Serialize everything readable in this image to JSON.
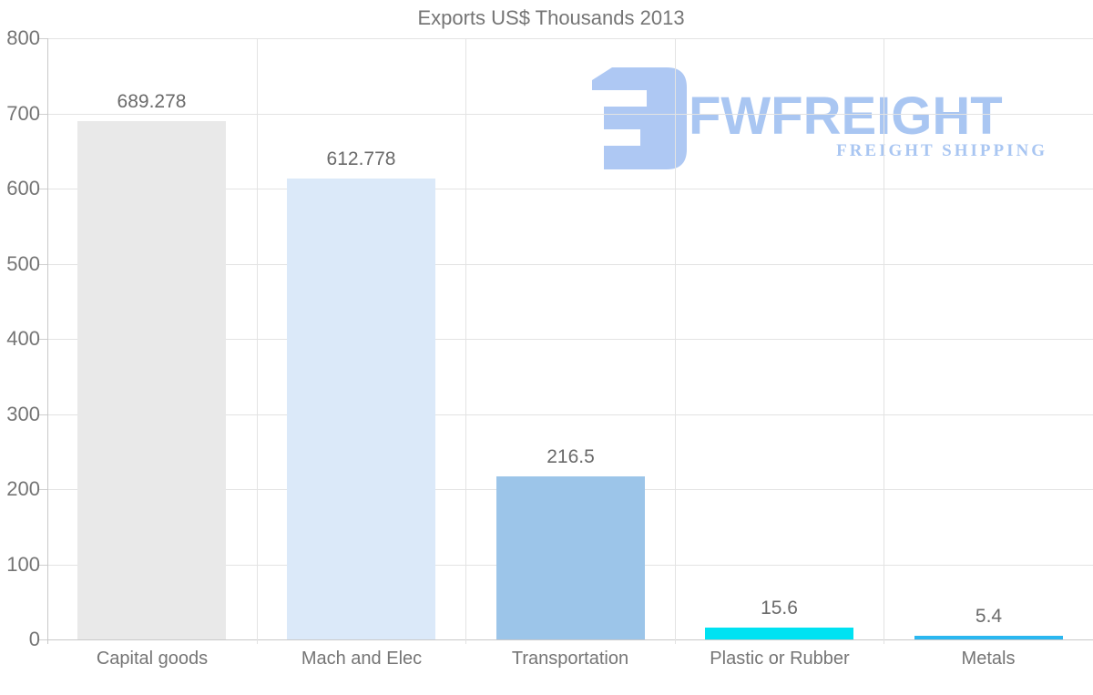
{
  "chart_data": {
    "type": "bar",
    "title": "Exports US$ Thousands 2013",
    "categories": [
      "Capital goods",
      "Mach and Elec",
      "Transportation",
      "Plastic or Rubber",
      "Metals"
    ],
    "values": [
      689.278,
      612.778,
      216.5,
      15.6,
      5.4
    ],
    "value_labels": [
      "689.278",
      "612.778",
      "216.5",
      "15.6",
      "5.4"
    ],
    "bar_colors": [
      "#e9e9e9",
      "#dbe9f9",
      "#9cc5e9",
      "#00e2f2",
      "#2ab7f0"
    ],
    "xlabel": "",
    "ylabel": "",
    "ylim": [
      0,
      800
    ],
    "yticks": [
      0,
      100,
      200,
      300,
      400,
      500,
      600,
      700,
      800
    ],
    "legend": "none",
    "grid": "horizontal gridlines every 100; vertical separators between categories",
    "title_color": "#757575",
    "tick_label_color": "#757575",
    "value_label_color": "#6a6a6a",
    "grid_color": "#e3e3e3",
    "axis_color": "#c9c9c9"
  },
  "watermark": {
    "brand": "FWFREIGHT",
    "tagline": "FREIGHT SHIPPING",
    "color": "#a9c6f2",
    "icon": "fwfreight-monogram"
  }
}
